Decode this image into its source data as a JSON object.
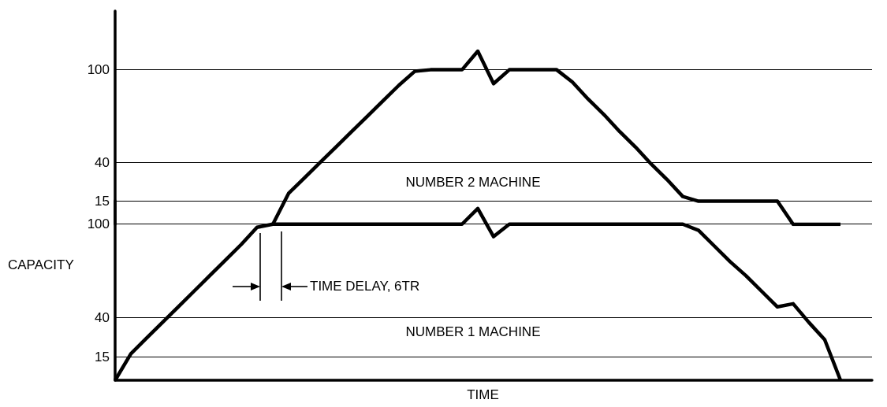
{
  "chart_data": [
    {
      "type": "line",
      "categories": [
        null,
        null,
        null,
        null,
        null,
        null,
        null,
        null,
        null,
        null,
        null,
        null,
        null,
        null,
        null,
        null,
        null,
        null,
        null,
        null,
        null,
        null,
        null,
        null,
        null,
        null,
        null,
        null,
        null,
        null,
        null,
        null,
        null,
        null,
        null,
        null,
        null,
        null,
        null,
        null,
        null,
        null,
        null,
        null,
        null,
        null,
        null,
        null,
        null
      ],
      "series": [
        {
          "color": "#000000",
          "values": [
            null,
            null,
            null,
            null,
            null,
            null,
            null,
            null,
            null,
            null,
            0,
            20,
            30,
            40,
            50,
            60,
            70,
            80,
            90,
            99,
            100,
            100,
            100,
            112,
            91,
            100,
            100,
            100,
            100,
            92,
            81,
            71,
            60,
            50,
            39,
            29,
            18,
            15,
            15,
            15,
            15,
            15,
            15,
            0,
            0,
            0,
            0,
            null,
            null
          ]
        }
      ],
      "ylim": [
        0,
        138
      ],
      "yticks": [
        15,
        40,
        100
      ],
      "grid": "y",
      "tick_labels": "y",
      "annotations": [
        "NUMBER 2 MACHINE"
      ]
    },
    {
      "type": "line",
      "categories": [
        null,
        null,
        null,
        null,
        null,
        null,
        null,
        null,
        null,
        null,
        null,
        null,
        null,
        null,
        null,
        null,
        null,
        null,
        null,
        null,
        null,
        null,
        null,
        null,
        null,
        null,
        null,
        null,
        null,
        null,
        null,
        null,
        null,
        null,
        null,
        null,
        null,
        null,
        null,
        null,
        null,
        null,
        null,
        null,
        null,
        null,
        null,
        null,
        null
      ],
      "series": [
        {
          "color": "#000000",
          "values": [
            0,
            17,
            27,
            37,
            47,
            57,
            67,
            77,
            87,
            98,
            100,
            100,
            100,
            100,
            100,
            100,
            100,
            100,
            100,
            100,
            100,
            100,
            100,
            110,
            92,
            100,
            100,
            100,
            100,
            100,
            100,
            100,
            100,
            100,
            100,
            100,
            100,
            96,
            86,
            76,
            67,
            57,
            47,
            49,
            37,
            26,
            0,
            null,
            null
          ]
        }
      ],
      "ylim": [
        0,
        115
      ],
      "yticks": [
        15,
        40,
        100
      ],
      "grid": "y",
      "tick_labels": "y",
      "xlabel": "TIME",
      "ylabel": "CAPACITY",
      "annotations": [
        "NUMBER 1 MACHINE",
        "TIME DELAY, 6TR"
      ]
    }
  ]
}
